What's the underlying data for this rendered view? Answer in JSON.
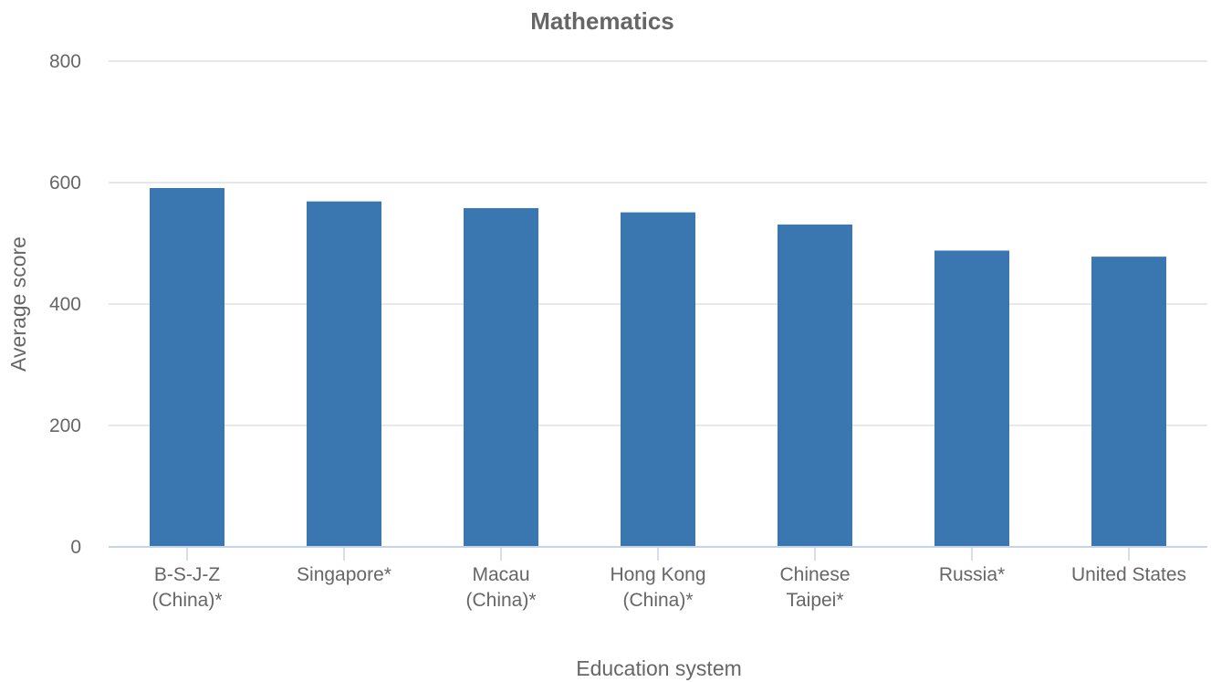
{
  "chart_data": {
    "type": "bar",
    "title": "Mathematics",
    "xlabel": "Education system",
    "ylabel": "Average score",
    "categories": [
      [
        "B-S-J-Z",
        "(China)*"
      ],
      [
        "Singapore*"
      ],
      [
        "Macau",
        "(China)*"
      ],
      [
        "Hong Kong",
        "(China)*"
      ],
      [
        "Chinese",
        "Taipei*"
      ],
      [
        "Russia*"
      ],
      [
        "United States"
      ]
    ],
    "values": [
      591,
      569,
      558,
      551,
      531,
      488,
      478
    ],
    "ylim": [
      0,
      800
    ],
    "yticks": [
      0,
      200,
      400,
      600,
      800
    ],
    "grid": true,
    "legend": "none",
    "bar_color": "#3a76af"
  }
}
